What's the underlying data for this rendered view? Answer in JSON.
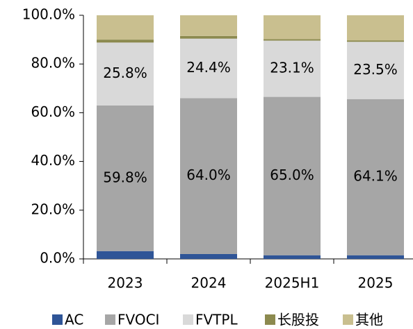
{
  "chart_data": {
    "type": "stacked_bar",
    "categories": [
      "2023",
      "2024",
      "2025H1",
      "2025"
    ],
    "series": [
      {
        "name": "AC",
        "color": "#2f5597",
        "values": [
          3.2,
          2.0,
          1.5,
          1.5
        ]
      },
      {
        "name": "FVOCI",
        "color": "#a6a6a6",
        "values": [
          59.8,
          64.0,
          65.0,
          64.1
        ],
        "value_labels": [
          "59.8%",
          "64.0%",
          "65.0%",
          "64.1%"
        ]
      },
      {
        "name": "FVTPL",
        "color": "#d9d9d9",
        "values": [
          25.8,
          24.4,
          23.1,
          23.5
        ],
        "value_labels": [
          "25.8%",
          "24.4%",
          "23.1%",
          "23.5%"
        ]
      },
      {
        "name": "长股投",
        "color": "#8c8a4f",
        "values": [
          1.2,
          1.1,
          0.6,
          0.6
        ]
      },
      {
        "name": "其他",
        "color": "#c9bf8f",
        "values": [
          10.0,
          8.5,
          9.8,
          10.3
        ]
      }
    ],
    "ylim": [
      0,
      100
    ],
    "yticks": [
      {
        "value": 0,
        "label": "0.0%"
      },
      {
        "value": 20,
        "label": "20.0%"
      },
      {
        "value": 40,
        "label": "40.0%"
      },
      {
        "value": 60,
        "label": "60.0%"
      },
      {
        "value": 80,
        "label": "80.0%"
      },
      {
        "value": 100,
        "label": "100.0%"
      }
    ],
    "legend": "bottom"
  }
}
